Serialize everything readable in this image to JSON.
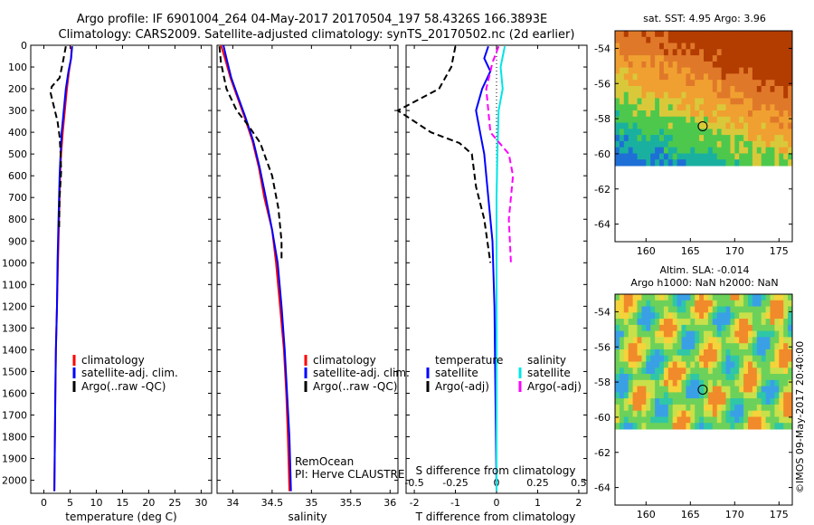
{
  "header": {
    "line1": "Argo profile: IF 6901004_264 04-May-2017 20170504_197 58.4326S 166.3893E",
    "line2": "Climatology: CARS2009. Satellite-adjusted climatology: synTS_20170502.nc (2d earlier)"
  },
  "colors": {
    "red": "#ff0000",
    "blue": "#0000ff",
    "black": "#000000",
    "cyan": "#00e5e5",
    "magenta": "#ff00ff"
  },
  "chart_data": [
    {
      "type": "line",
      "id": "temperature",
      "xlabel": "temperature (deg C)",
      "ylabel": "",
      "xlim": [
        -2.5,
        32
      ],
      "ylim": [
        2060,
        0
      ],
      "xticks": [
        0,
        5,
        10,
        15,
        20,
        25,
        30
      ],
      "yticks": [
        0,
        100,
        200,
        300,
        400,
        500,
        600,
        700,
        800,
        900,
        1000,
        1100,
        1200,
        1300,
        1400,
        1500,
        1600,
        1700,
        1800,
        1900,
        2000
      ],
      "legend": [
        "climatology",
        "satellite-adj. clim.",
        "Argo(..raw -QC)"
      ],
      "series": [
        {
          "name": "climatology",
          "color": "red",
          "dash": false,
          "points": [
            [
              5.3,
              5
            ],
            [
              5.2,
              60
            ],
            [
              4.8,
              120
            ],
            [
              4.4,
              200
            ],
            [
              4.0,
              300
            ],
            [
              3.6,
              400
            ],
            [
              3.3,
              500
            ],
            [
              3.1,
              600
            ],
            [
              2.9,
              800
            ],
            [
              2.7,
              1000
            ],
            [
              2.5,
              1200
            ],
            [
              2.3,
              1400
            ],
            [
              2.2,
              1600
            ],
            [
              2.1,
              1800
            ],
            [
              2.0,
              2050
            ]
          ]
        },
        {
          "name": "satellite-adj. clim.",
          "color": "blue",
          "dash": false,
          "points": [
            [
              5.4,
              5
            ],
            [
              5.2,
              60
            ],
            [
              4.7,
              120
            ],
            [
              4.2,
              200
            ],
            [
              3.8,
              300
            ],
            [
              3.4,
              400
            ],
            [
              3.2,
              500
            ],
            [
              3.0,
              600
            ],
            [
              2.8,
              800
            ],
            [
              2.6,
              1000
            ],
            [
              2.5,
              1200
            ],
            [
              2.3,
              1400
            ],
            [
              2.2,
              1600
            ],
            [
              2.1,
              1800
            ],
            [
              2.0,
              2050
            ]
          ]
        },
        {
          "name": "Argo(..raw -QC)",
          "color": "black",
          "dash": true,
          "points": [
            [
              4.2,
              5
            ],
            [
              3.6,
              80
            ],
            [
              3.0,
              150
            ],
            [
              1.5,
              190
            ],
            [
              1.3,
              220
            ],
            [
              1.8,
              270
            ],
            [
              2.6,
              350
            ],
            [
              3.0,
              420
            ],
            [
              3.2,
              500
            ],
            [
              3.3,
              580
            ],
            [
              3.0,
              700
            ],
            [
              2.9,
              850
            ]
          ]
        }
      ]
    },
    {
      "type": "line",
      "id": "salinity",
      "xlabel": "salinity",
      "ylabel": "",
      "xlim": [
        33.8,
        36.1
      ],
      "ylim": [
        2060,
        0
      ],
      "xticks": [
        34,
        34.5,
        35,
        35.5,
        36
      ],
      "yticks": [
        0,
        100,
        200,
        300,
        400,
        500,
        600,
        700,
        800,
        900,
        1000,
        1100,
        1200,
        1300,
        1400,
        1500,
        1600,
        1700,
        1800,
        1900,
        2000
      ],
      "legend": [
        "climatology",
        "satellite-adj. clim.",
        "Argo(..raw -QC)"
      ],
      "annotations": [
        "RemOcean",
        "PI: Herve CLAUSTRE"
      ],
      "series": [
        {
          "name": "climatology",
          "color": "red",
          "dash": false,
          "points": [
            [
              33.85,
              0
            ],
            [
              33.9,
              60
            ],
            [
              33.97,
              150
            ],
            [
              34.05,
              230
            ],
            [
              34.15,
              330
            ],
            [
              34.25,
              440
            ],
            [
              34.33,
              560
            ],
            [
              34.4,
              700
            ],
            [
              34.5,
              850
            ],
            [
              34.55,
              1000
            ],
            [
              34.6,
              1200
            ],
            [
              34.65,
              1400
            ],
            [
              34.68,
              1600
            ],
            [
              34.7,
              1800
            ],
            [
              34.72,
              2050
            ]
          ]
        },
        {
          "name": "satellite-adj. clim.",
          "color": "blue",
          "dash": false,
          "points": [
            [
              33.88,
              0
            ],
            [
              33.92,
              60
            ],
            [
              33.98,
              150
            ],
            [
              34.06,
              230
            ],
            [
              34.16,
              330
            ],
            [
              34.26,
              440
            ],
            [
              34.34,
              560
            ],
            [
              34.42,
              700
            ],
            [
              34.5,
              850
            ],
            [
              34.57,
              1000
            ],
            [
              34.62,
              1200
            ],
            [
              34.66,
              1400
            ],
            [
              34.69,
              1600
            ],
            [
              34.72,
              1800
            ],
            [
              34.74,
              2050
            ]
          ]
        },
        {
          "name": "Argo(..raw -QC)",
          "color": "black",
          "dash": true,
          "points": [
            [
              33.83,
              5
            ],
            [
              33.85,
              80
            ],
            [
              33.92,
              200
            ],
            [
              34.05,
              300
            ],
            [
              34.2,
              370
            ],
            [
              34.35,
              450
            ],
            [
              34.5,
              600
            ],
            [
              34.58,
              750
            ],
            [
              34.62,
              900
            ],
            [
              34.62,
              980
            ]
          ]
        }
      ]
    },
    {
      "type": "line",
      "id": "difference",
      "xlabel": "T difference from climatology",
      "xlabel2": "S difference from climatology",
      "xlim": [
        -2.2,
        2.2
      ],
      "ylim": [
        2060,
        0
      ],
      "xticks": [
        -2,
        -1,
        0,
        1,
        2
      ],
      "xticks2": [
        -0.5,
        -0.25,
        0,
        0.25,
        0.5
      ],
      "xtick2_labels": [
        "-0.5",
        "-0.25",
        "0",
        "0.25",
        "0.5"
      ],
      "yticks": [
        0,
        100,
        200,
        300,
        400,
        500,
        600,
        700,
        800,
        900,
        1000,
        1100,
        1200,
        1300,
        1400,
        1500,
        1600,
        1700,
        1800,
        1900,
        2000
      ],
      "legend_titles": [
        "temperature",
        "salinity"
      ],
      "legend": [
        "satellite",
        "Argo(-adj)",
        "satellite",
        "Argo(-adj)"
      ],
      "series": [
        {
          "name": "satellite",
          "color": "blue",
          "dash": false,
          "points": [
            [
              -0.2,
              5
            ],
            [
              -0.3,
              60
            ],
            [
              -0.15,
              120
            ],
            [
              -0.35,
              200
            ],
            [
              -0.5,
              300
            ],
            [
              -0.4,
              400
            ],
            [
              -0.3,
              500
            ],
            [
              -0.2,
              700
            ],
            [
              -0.1,
              900
            ],
            [
              -0.05,
              1200
            ],
            [
              0,
              2050
            ]
          ]
        },
        {
          "name": "Argo(-adj)",
          "color": "black",
          "dash": true,
          "points": [
            [
              -1.0,
              5
            ],
            [
              -1.1,
              100
            ],
            [
              -1.4,
              200
            ],
            [
              -2.4,
              300
            ],
            [
              -1.6,
              400
            ],
            [
              -0.9,
              450
            ],
            [
              -0.6,
              500
            ],
            [
              -0.5,
              650
            ],
            [
              -0.3,
              800
            ],
            [
              -0.15,
              1000
            ]
          ]
        },
        {
          "name": "satellite",
          "color": "cyan",
          "dash": false,
          "points": [
            [
              0.2,
              5
            ],
            [
              0.1,
              100
            ],
            [
              0.15,
              200
            ],
            [
              0.05,
              300
            ],
            [
              0.02,
              500
            ],
            [
              0,
              700
            ],
            [
              0,
              2050
            ]
          ]
        },
        {
          "name": "Argo(-adj)",
          "color": "magenta",
          "dash": true,
          "points": [
            [
              0.05,
              5
            ],
            [
              -0.1,
              80
            ],
            [
              -0.25,
              200
            ],
            [
              -0.15,
              400
            ],
            [
              0.3,
              500
            ],
            [
              0.4,
              600
            ],
            [
              0.3,
              800
            ],
            [
              0.35,
              1000
            ]
          ]
        }
      ]
    }
  ],
  "maps": [
    {
      "title": "sat. SST: 4.95 Argo: 3.96",
      "xticks": [
        160,
        165,
        170,
        175
      ],
      "yticks": [
        -54,
        -56,
        -58,
        -60,
        -62,
        -64
      ]
    },
    {
      "title_line1": "Altim. SLA: -0.014",
      "title_line2": "Argo h1000: NaN h2000: NaN",
      "xticks": [
        160,
        165,
        170,
        175
      ],
      "yticks": [
        -54,
        -56,
        -58,
        -60,
        -62,
        -64
      ]
    }
  ],
  "credit": "©IMOS 09-May-2017 20:40:00"
}
